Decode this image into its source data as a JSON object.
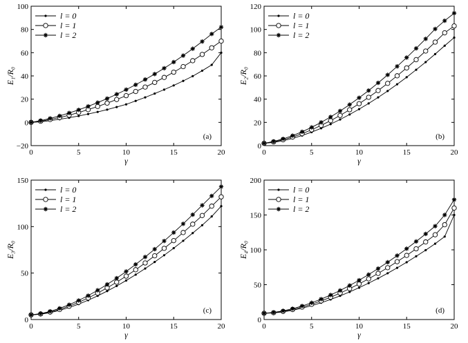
{
  "chart_data": [
    {
      "type": "line",
      "panel_label": "(a)",
      "xlabel": "γ",
      "ylabel": "E₁/R₀",
      "xlim": [
        0,
        20
      ],
      "ylim": [
        -20,
        100
      ],
      "xticks": [
        "0",
        "5",
        "10",
        "15",
        "20"
      ],
      "yticks": [
        "−20",
        "0",
        "20",
        "40",
        "60",
        "80",
        "100"
      ],
      "ytick_values": [
        -20,
        0,
        20,
        40,
        60,
        80,
        100
      ],
      "legend_position": "top-left",
      "x": [
        0,
        1,
        2,
        3,
        4,
        5,
        6,
        7,
        8,
        9,
        10,
        11,
        12,
        13,
        14,
        15,
        16,
        17,
        18,
        19,
        20
      ],
      "series": [
        {
          "name": "l = 0",
          "marker": "dot",
          "values": [
            0,
            0.5,
            1.5,
            2.7,
            4.0,
            5.5,
            7.2,
            9.0,
            11.0,
            13.2,
            15.5,
            18.5,
            21.5,
            24.8,
            28.2,
            31.8,
            35.7,
            39.8,
            44.5,
            49.5,
            60
          ]
        },
        {
          "name": "l = 1",
          "marker": "circle",
          "values": [
            0,
            1.0,
            2.5,
            4.2,
            6.2,
            8.5,
            11.0,
            13.7,
            16.6,
            19.7,
            23.0,
            26.6,
            30.4,
            34.4,
            38.7,
            43.2,
            48.0,
            53.1,
            58.5,
            64.2,
            70
          ]
        },
        {
          "name": "l = 2",
          "marker": "star",
          "values": [
            0,
            1.5,
            3.4,
            5.6,
            8.1,
            10.8,
            13.8,
            17.0,
            20.5,
            24.2,
            28.2,
            32.4,
            36.9,
            41.6,
            46.6,
            51.9,
            57.5,
            63.4,
            69.6,
            76.1,
            82
          ]
        }
      ]
    },
    {
      "type": "line",
      "panel_label": "(b)",
      "xlabel": "γ",
      "ylabel": "E₂/R₀",
      "xlim": [
        0,
        20
      ],
      "ylim": [
        0,
        120
      ],
      "xticks": [
        "0",
        "5",
        "10",
        "15",
        "20"
      ],
      "yticks": [
        "0",
        "20",
        "40",
        "60",
        "80",
        "100",
        "120"
      ],
      "ytick_values": [
        0,
        20,
        40,
        60,
        80,
        100,
        120
      ],
      "legend_position": "top-left",
      "x": [
        0,
        1,
        2,
        3,
        4,
        5,
        6,
        7,
        8,
        9,
        10,
        11,
        12,
        13,
        14,
        15,
        16,
        17,
        18,
        19,
        20
      ],
      "series": [
        {
          "name": "l = 0",
          "marker": "dot",
          "values": [
            2,
            2.8,
            4.2,
            6.2,
            8.7,
            11.6,
            14.9,
            18.5,
            22.5,
            26.8,
            31.4,
            36.3,
            41.5,
            47.0,
            52.8,
            58.9,
            65.3,
            71.9,
            78.8,
            86.0,
            93
          ]
        },
        {
          "name": "l = 1",
          "marker": "circle",
          "values": [
            2,
            3.2,
            5.0,
            7.4,
            10.3,
            13.6,
            17.4,
            21.5,
            26.0,
            30.9,
            36.1,
            41.6,
            47.4,
            53.6,
            60.1,
            66.9,
            74.0,
            81.4,
            89.1,
            97.1,
            103
          ]
        },
        {
          "name": "l = 2",
          "marker": "star",
          "values": [
            2,
            3.6,
            5.8,
            8.6,
            11.9,
            15.7,
            20.0,
            24.7,
            29.8,
            35.3,
            41.2,
            47.4,
            54.0,
            60.9,
            68.2,
            75.8,
            83.7,
            91.9,
            100.4,
            107.5,
            114
          ]
        }
      ]
    },
    {
      "type": "line",
      "panel_label": "(c)",
      "xlabel": "γ",
      "ylabel": "E₃/R₀",
      "xlim": [
        0,
        20
      ],
      "ylim": [
        0,
        150
      ],
      "xticks": [
        "0",
        "5",
        "10",
        "15",
        "20"
      ],
      "yticks": [
        "0",
        "50",
        "100",
        "150"
      ],
      "ytick_values": [
        0,
        50,
        100,
        150
      ],
      "legend_position": "top-left",
      "x": [
        0,
        1,
        2,
        3,
        4,
        5,
        6,
        7,
        8,
        9,
        10,
        11,
        12,
        13,
        14,
        15,
        16,
        17,
        18,
        19,
        20
      ],
      "series": [
        {
          "name": "l = 0",
          "marker": "dot",
          "values": [
            5,
            5.7,
            7.4,
            9.8,
            12.9,
            16.6,
            20.8,
            25.5,
            30.6,
            36.1,
            42.0,
            48.3,
            54.9,
            61.9,
            69.2,
            76.8,
            84.7,
            93.0,
            101.5,
            110.9,
            122
          ]
        },
        {
          "name": "l = 1",
          "marker": "circle",
          "values": [
            5,
            6.0,
            8.0,
            10.8,
            14.3,
            18.5,
            23.2,
            28.4,
            34.1,
            40.2,
            46.7,
            53.6,
            60.9,
            68.6,
            76.6,
            84.9,
            93.6,
            102.6,
            111.9,
            122.0,
            132
          ]
        },
        {
          "name": "l = 2",
          "marker": "star",
          "values": [
            5,
            6.4,
            8.8,
            12.0,
            15.9,
            20.5,
            25.7,
            31.5,
            37.8,
            44.5,
            51.7,
            59.3,
            67.3,
            75.7,
            84.5,
            93.6,
            103.0,
            112.8,
            122.9,
            133.0,
            143
          ]
        }
      ]
    },
    {
      "type": "line",
      "panel_label": "(d)",
      "xlabel": "γ",
      "ylabel": "E₄/R₀",
      "xlim": [
        0,
        20
      ],
      "ylim": [
        0,
        200
      ],
      "xticks": [
        "0",
        "5",
        "10",
        "15",
        "20"
      ],
      "yticks": [
        "0",
        "50",
        "100",
        "150",
        "200"
      ],
      "ytick_values": [
        0,
        50,
        100,
        150,
        200
      ],
      "legend_position": "top-left",
      "x": [
        0,
        1,
        2,
        3,
        4,
        5,
        6,
        7,
        8,
        9,
        10,
        11,
        12,
        13,
        14,
        15,
        16,
        17,
        18,
        19,
        20
      ],
      "series": [
        {
          "name": "l = 0",
          "marker": "dot",
          "values": [
            9,
            9.5,
            11.0,
            13.3,
            16.3,
            19.9,
            24.1,
            28.8,
            34.0,
            39.6,
            45.7,
            52.2,
            59.1,
            66.4,
            74.1,
            82.2,
            90.7,
            99.5,
            108.8,
            119.0,
            150
          ]
        },
        {
          "name": "l = 1",
          "marker": "circle",
          "values": [
            9,
            9.8,
            11.6,
            14.3,
            17.8,
            21.9,
            26.7,
            32.0,
            37.9,
            44.3,
            51.1,
            58.4,
            66.2,
            74.4,
            83.0,
            92.0,
            101.5,
            111.3,
            121.6,
            136.0,
            160
          ]
        },
        {
          "name": "l = 2",
          "marker": "star",
          "values": [
            9,
            10.2,
            12.4,
            15.5,
            19.4,
            24.0,
            29.3,
            35.2,
            41.7,
            48.8,
            56.4,
            64.5,
            73.1,
            82.2,
            91.7,
            101.6,
            112.0,
            122.8,
            134.0,
            150.0,
            172
          ]
        }
      ]
    }
  ]
}
